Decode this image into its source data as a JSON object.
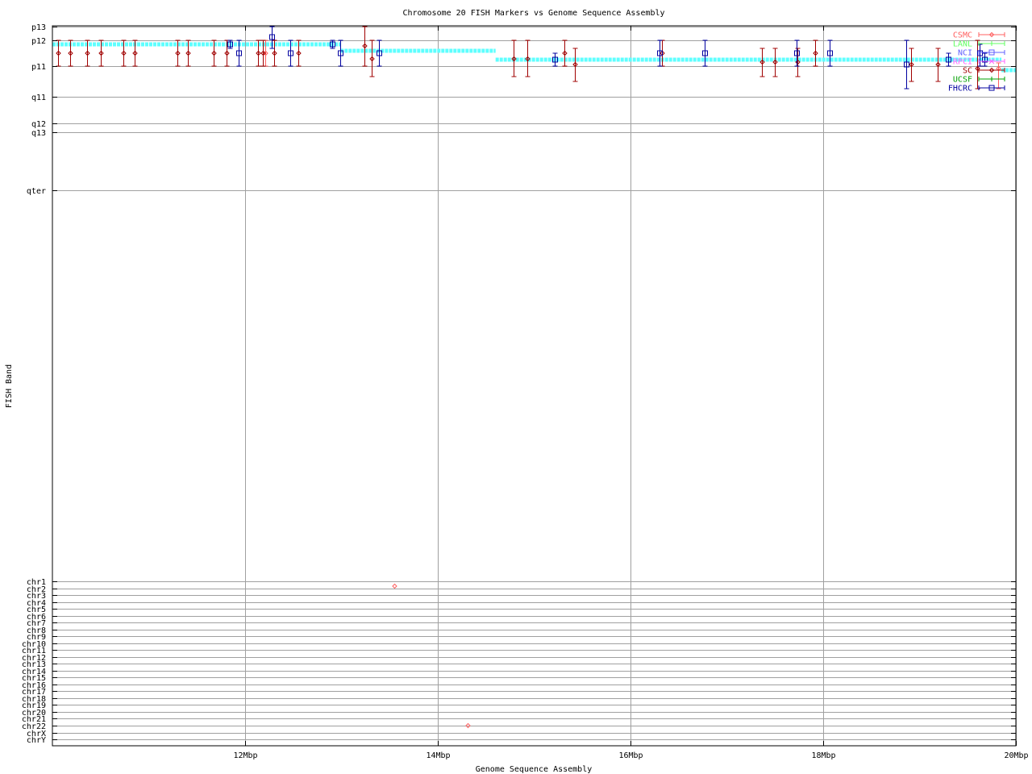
{
  "chart_data": {
    "type": "scatter",
    "title": "Chromosome 20 FISH Markers vs Genome Sequence Assembly",
    "xlabel": "Genome Sequence Assembly",
    "ylabel": "FISH Band",
    "xlim": [
      10,
      20
    ],
    "x_unit": "Mbp",
    "xticks": [
      {
        "value": 12,
        "label": "12Mbp"
      },
      {
        "value": 14,
        "label": "14Mbp"
      },
      {
        "value": 16,
        "label": "16Mbp"
      },
      {
        "value": 18,
        "label": "18Mbp"
      },
      {
        "value": 20,
        "label": "20Mbp"
      }
    ],
    "ylim": [
      0,
      893
    ],
    "yticks": [
      {
        "value": 1,
        "label": "p13"
      },
      {
        "value": 18,
        "label": "p12"
      },
      {
        "value": 50,
        "label": "p11"
      },
      {
        "value": 88,
        "label": "q11"
      },
      {
        "value": 121,
        "label": "q12"
      },
      {
        "value": 132,
        "label": "q13"
      },
      {
        "value": 204,
        "label": "qter"
      },
      {
        "value": 689,
        "label": "chr1"
      },
      {
        "value": 697.5,
        "label": "chr2"
      },
      {
        "value": 706,
        "label": "chr3"
      },
      {
        "value": 714.6,
        "label": "chr4"
      },
      {
        "value": 723.1,
        "label": "chr5"
      },
      {
        "value": 731.6,
        "label": "chr6"
      },
      {
        "value": 740.1,
        "label": "chr7"
      },
      {
        "value": 748.7,
        "label": "chr8"
      },
      {
        "value": 757.2,
        "label": "chr9"
      },
      {
        "value": 765.7,
        "label": "chr10"
      },
      {
        "value": 774.2,
        "label": "chr11"
      },
      {
        "value": 782.7,
        "label": "chr12"
      },
      {
        "value": 791.3,
        "label": "chr13"
      },
      {
        "value": 799.8,
        "label": "chr14"
      },
      {
        "value": 808.3,
        "label": "chr15"
      },
      {
        "value": 816.8,
        "label": "chr16"
      },
      {
        "value": 825.4,
        "label": "chr17"
      },
      {
        "value": 833.9,
        "label": "chr18"
      },
      {
        "value": 842.4,
        "label": "chr19"
      },
      {
        "value": 850.9,
        "label": "chr20"
      },
      {
        "value": 859.4,
        "label": "chr21"
      },
      {
        "value": 868,
        "label": "chr22"
      },
      {
        "value": 876.5,
        "label": "chrX"
      },
      {
        "value": 885,
        "label": "chrY"
      }
    ],
    "grid": true,
    "legend_placement": "top-right",
    "assembly_line": {
      "color": "#5fffff",
      "segments": [
        [
          10,
          12.99,
          23
        ],
        [
          12.99,
          14.6,
          31
        ],
        [
          14.6,
          19.85,
          42
        ],
        [
          19.85,
          20,
          55
        ]
      ]
    },
    "series": [
      {
        "name": "CSMC",
        "color": "#ff6060",
        "marker": "diamond",
        "points": [
          [
            12.21,
            34,
            18,
            50
          ],
          [
            19.82,
            53,
            46,
            78
          ],
          [
            13.55,
            695,
            695,
            695
          ],
          [
            14.31,
            868,
            868,
            868
          ]
        ]
      },
      {
        "name": "LANL",
        "color": "#60ff60",
        "marker": "plus",
        "points": []
      },
      {
        "name": "NCI",
        "color": "#6060ff",
        "marker": "square",
        "points": []
      },
      {
        "name": "RPCI",
        "color": "#ff60ff",
        "marker": "cross",
        "points": []
      },
      {
        "name": "SC",
        "color": "#a00000",
        "marker": "diamond",
        "points": [
          [
            10.06,
            34,
            18,
            50
          ],
          [
            10.18,
            34,
            18,
            50
          ],
          [
            10.36,
            34,
            18,
            50
          ],
          [
            10.5,
            34,
            18,
            50
          ],
          [
            10.74,
            34,
            18,
            50
          ],
          [
            10.85,
            34,
            18,
            50
          ],
          [
            11.3,
            34,
            18,
            50
          ],
          [
            11.41,
            34,
            18,
            50
          ],
          [
            11.67,
            34,
            18,
            50
          ],
          [
            11.81,
            34,
            18,
            50
          ],
          [
            12.13,
            34,
            18,
            50
          ],
          [
            12.18,
            34,
            18,
            50
          ],
          [
            12.3,
            34,
            18,
            50
          ],
          [
            12.55,
            34,
            18,
            50
          ],
          [
            13.24,
            25,
            1,
            50
          ],
          [
            13.31,
            41,
            18,
            63
          ],
          [
            14.79,
            41,
            18,
            63
          ],
          [
            14.93,
            41,
            18,
            63
          ],
          [
            15.31,
            34,
            18,
            50
          ],
          [
            15.42,
            48,
            28,
            69
          ],
          [
            16.33,
            34,
            18,
            50
          ],
          [
            17.36,
            45,
            28,
            63
          ],
          [
            17.5,
            45,
            28,
            63
          ],
          [
            17.73,
            45,
            28,
            63
          ],
          [
            17.92,
            34,
            18,
            50
          ],
          [
            18.91,
            48,
            28,
            69
          ],
          [
            19.19,
            48,
            28,
            69
          ],
          [
            19.6,
            53,
            18,
            78
          ]
        ]
      },
      {
        "name": "UCSF",
        "color": "#00a000",
        "marker": "plus",
        "points": []
      },
      {
        "name": "FHCRC",
        "color": "#0000a0",
        "marker": "square",
        "points": [
          [
            11.84,
            23,
            18,
            28
          ],
          [
            11.93,
            34,
            18,
            50
          ],
          [
            12.28,
            14,
            1,
            28
          ],
          [
            12.47,
            34,
            18,
            50
          ],
          [
            12.9,
            23,
            18,
            28
          ],
          [
            12.99,
            34,
            18,
            50
          ],
          [
            13.39,
            34,
            18,
            50
          ],
          [
            15.21,
            42,
            34,
            50
          ],
          [
            16.3,
            34,
            18,
            50
          ],
          [
            16.77,
            34,
            18,
            50
          ],
          [
            17.72,
            34,
            18,
            50
          ],
          [
            18.07,
            34,
            18,
            50
          ],
          [
            18.86,
            48,
            18,
            78
          ],
          [
            19.3,
            42,
            34,
            50
          ],
          [
            19.62,
            34,
            23,
            50
          ],
          [
            19.67,
            42,
            34,
            50
          ]
        ]
      }
    ]
  }
}
